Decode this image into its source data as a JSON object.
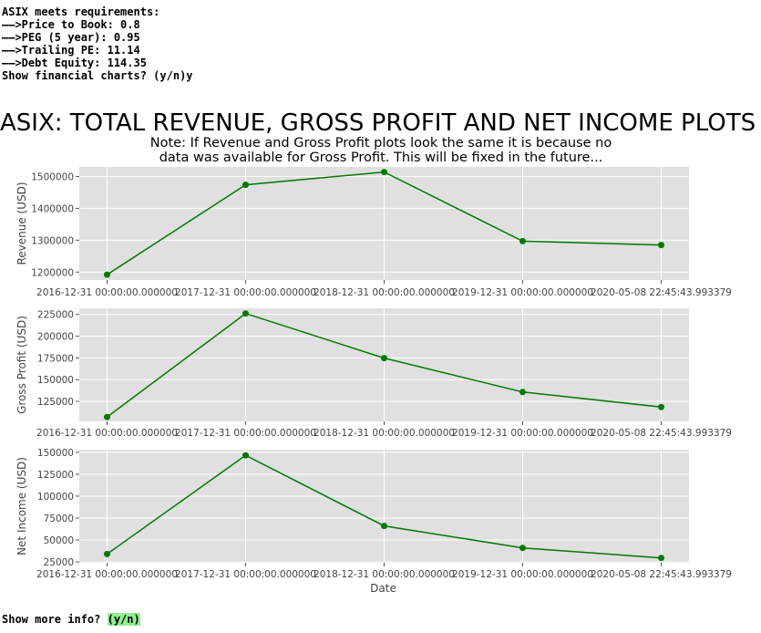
{
  "terminal": {
    "lines": [
      "ASIX meets requirements:",
      "—–>Price to Book: 0.8",
      "—–>PEG (5 year): 0.95",
      "—–>Trailing PE: 11.14",
      "—–>Debt Equity: 114.35",
      "",
      "Show financial charts? (y/n)y"
    ],
    "prompt_more": "Show more info? ",
    "prompt_more_highlight": "(y/n)"
  },
  "figure": {
    "title": "ASIX: TOTAL REVENUE, GROSS PROFIT AND NET INCOME PLOTS",
    "note_line1": "Note: If Revenue and Gross Profit plots look the same it is because no",
    "note_line2": "data was available for Gross Profit. This will be fixed in the future..."
  },
  "chart_data": [
    {
      "type": "line",
      "x": [
        "2016-12-31 00:00:00.000000",
        "2017-12-31 00:00:00.000000",
        "2018-12-31 00:00:00.000000",
        "2019-12-31 00:00:00.000000",
        "2020-05-08 22:45:43.993379"
      ],
      "y": [
        1192000,
        1474000,
        1514000,
        1297000,
        1285000
      ],
      "ylabel": "Revenue (USD)",
      "xlabel": "",
      "yticks": [
        1200000,
        1300000,
        1400000,
        1500000
      ],
      "ylim": [
        1175000,
        1530000
      ],
      "grid": true,
      "color": "#007a00"
    },
    {
      "type": "line",
      "x": [
        "2016-12-31 00:00:00.000000",
        "2017-12-31 00:00:00.000000",
        "2018-12-31 00:00:00.000000",
        "2019-12-31 00:00:00.000000",
        "2020-05-08 22:45:43.993379"
      ],
      "y": [
        107000,
        226000,
        174800,
        135800,
        118600
      ],
      "ylabel": "Gross Profit (USD)",
      "xlabel": "",
      "yticks": [
        125000,
        150000,
        175000,
        200000,
        225000
      ],
      "ylim": [
        102000,
        232000
      ],
      "grid": true,
      "color": "#007a00"
    },
    {
      "type": "line",
      "x": [
        "2016-12-31 00:00:00.000000",
        "2017-12-31 00:00:00.000000",
        "2018-12-31 00:00:00.000000",
        "2019-12-31 00:00:00.000000",
        "2020-05-08 22:45:43.993379"
      ],
      "y": [
        34000,
        146500,
        66000,
        41000,
        29500
      ],
      "ylabel": "Net Income (USD)",
      "xlabel": "Date",
      "yticks": [
        25000,
        50000,
        75000,
        100000,
        125000,
        150000
      ],
      "ylim": [
        24000,
        153000
      ],
      "grid": true,
      "color": "#007a00"
    }
  ]
}
